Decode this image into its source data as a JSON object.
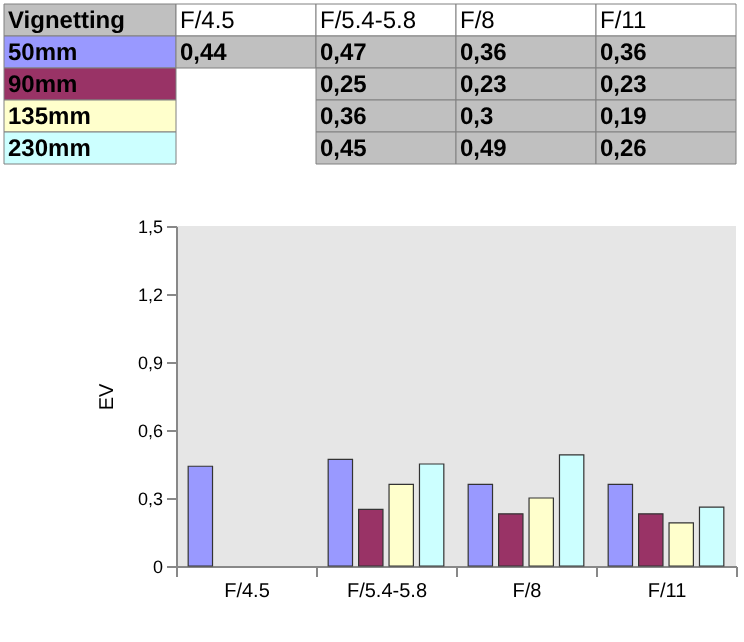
{
  "chart_data": {
    "type": "bar",
    "title": "Vignetting",
    "ylabel": "EV",
    "categories": [
      "F/4.5",
      "F/5.4-5.8",
      "F/8",
      "F/11"
    ],
    "series": [
      {
        "name": "50mm",
        "color": "#9999ff",
        "values": [
          0.44,
          0.47,
          0.36,
          0.36
        ],
        "value_labels": [
          "0,44",
          "0,47",
          "0,36",
          "0,36"
        ]
      },
      {
        "name": "90mm",
        "color": "#993366",
        "values": [
          null,
          0.25,
          0.23,
          0.23
        ],
        "value_labels": [
          null,
          "0,25",
          "0,23",
          "0,23"
        ]
      },
      {
        "name": "135mm",
        "color": "#ffffcc",
        "values": [
          null,
          0.36,
          0.3,
          0.19
        ],
        "value_labels": [
          null,
          "0,36",
          "0,3",
          "0,19"
        ]
      },
      {
        "name": "230mm",
        "color": "#ccffff",
        "values": [
          null,
          0.45,
          0.49,
          0.26
        ],
        "value_labels": [
          null,
          "0,45",
          "0,49",
          "0,26"
        ]
      }
    ],
    "ylim": [
      0,
      1.5
    ],
    "yticks": [
      0,
      {
        "value": 0.3,
        "label": "0,3"
      },
      {
        "value": 0.6,
        "label": "0,6"
      },
      {
        "value": 0.9,
        "label": "0,9"
      },
      {
        "value": 1.2,
        "label": "1,2"
      },
      {
        "value": 1.5,
        "label": "1,5"
      }
    ],
    "grid": false,
    "legend": "top"
  }
}
